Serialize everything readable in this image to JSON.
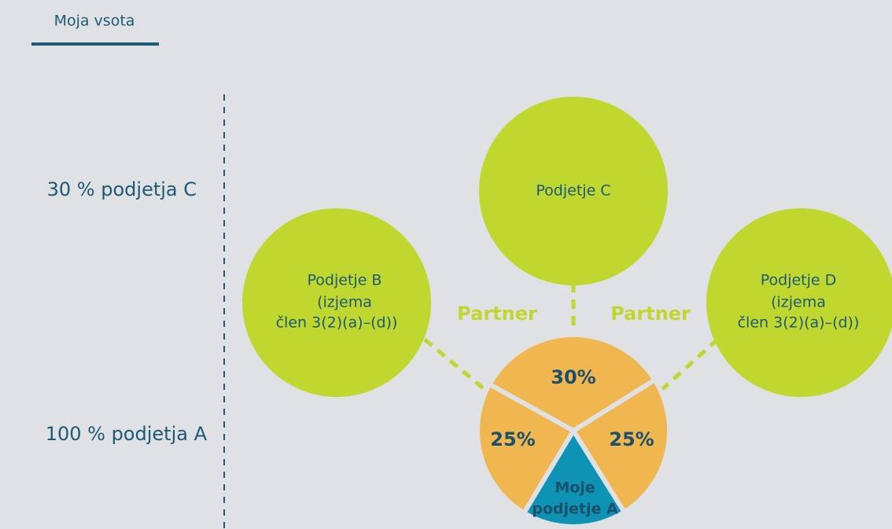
{
  "tab": {
    "label": "Moja vsota"
  },
  "rows": [
    {
      "label": "30 % podjetja C"
    },
    {
      "label": "100 % podjetja A"
    }
  ],
  "nodes": [
    {
      "lines": [
        "Podjetje C"
      ]
    },
    {
      "lines": [
        "Podjetje B",
        "(izjema",
        "člen 3(2)(a)–(d))"
      ]
    },
    {
      "lines": [
        "Podjetje D",
        "(izjema",
        "člen 3(2)(a)–(d))"
      ]
    }
  ],
  "links": [
    {
      "label": "Partner"
    },
    {
      "label": "Partner"
    }
  ],
  "slices": [
    {
      "label": "30%"
    },
    {
      "label": "25%"
    },
    {
      "label": "25%"
    },
    {
      "lines": [
        "Moje",
        "podjetje A"
      ]
    }
  ]
}
